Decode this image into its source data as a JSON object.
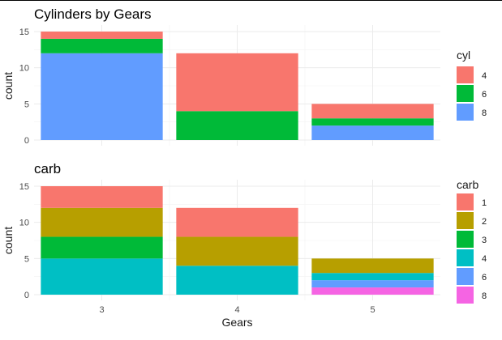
{
  "chart_data": [
    {
      "type": "bar",
      "stacked": true,
      "title": "Cylinders by Gears",
      "xlabel": "",
      "ylabel": "count",
      "categories": [
        "3",
        "4",
        "5"
      ],
      "ylim": [
        0,
        15
      ],
      "yticks": [
        0,
        5,
        10,
        15
      ],
      "grid": true,
      "legend": {
        "title": "cyl",
        "position": "right"
      },
      "series": [
        {
          "name": "4",
          "color": "#F8766D",
          "values": [
            1,
            8,
            2
          ]
        },
        {
          "name": "6",
          "color": "#00BA38",
          "values": [
            2,
            4,
            1
          ]
        },
        {
          "name": "8",
          "color": "#619CFF",
          "values": [
            12,
            0,
            2
          ]
        }
      ]
    },
    {
      "type": "bar",
      "stacked": true,
      "title": "carb",
      "xlabel": "Gears",
      "ylabel": "count",
      "categories": [
        "3",
        "4",
        "5"
      ],
      "ylim": [
        0,
        15
      ],
      "yticks": [
        0,
        5,
        10,
        15
      ],
      "grid": true,
      "legend": {
        "title": "carb",
        "position": "right"
      },
      "series": [
        {
          "name": "1",
          "color": "#F8766D",
          "values": [
            3,
            4,
            0
          ]
        },
        {
          "name": "2",
          "color": "#B79F00",
          "values": [
            4,
            4,
            2
          ]
        },
        {
          "name": "3",
          "color": "#00BA38",
          "values": [
            3,
            0,
            0
          ]
        },
        {
          "name": "4",
          "color": "#00BFC4",
          "values": [
            5,
            4,
            1
          ]
        },
        {
          "name": "6",
          "color": "#619CFF",
          "values": [
            0,
            0,
            1
          ]
        },
        {
          "name": "8",
          "color": "#F564E3",
          "values": [
            0,
            0,
            1
          ]
        }
      ]
    }
  ]
}
